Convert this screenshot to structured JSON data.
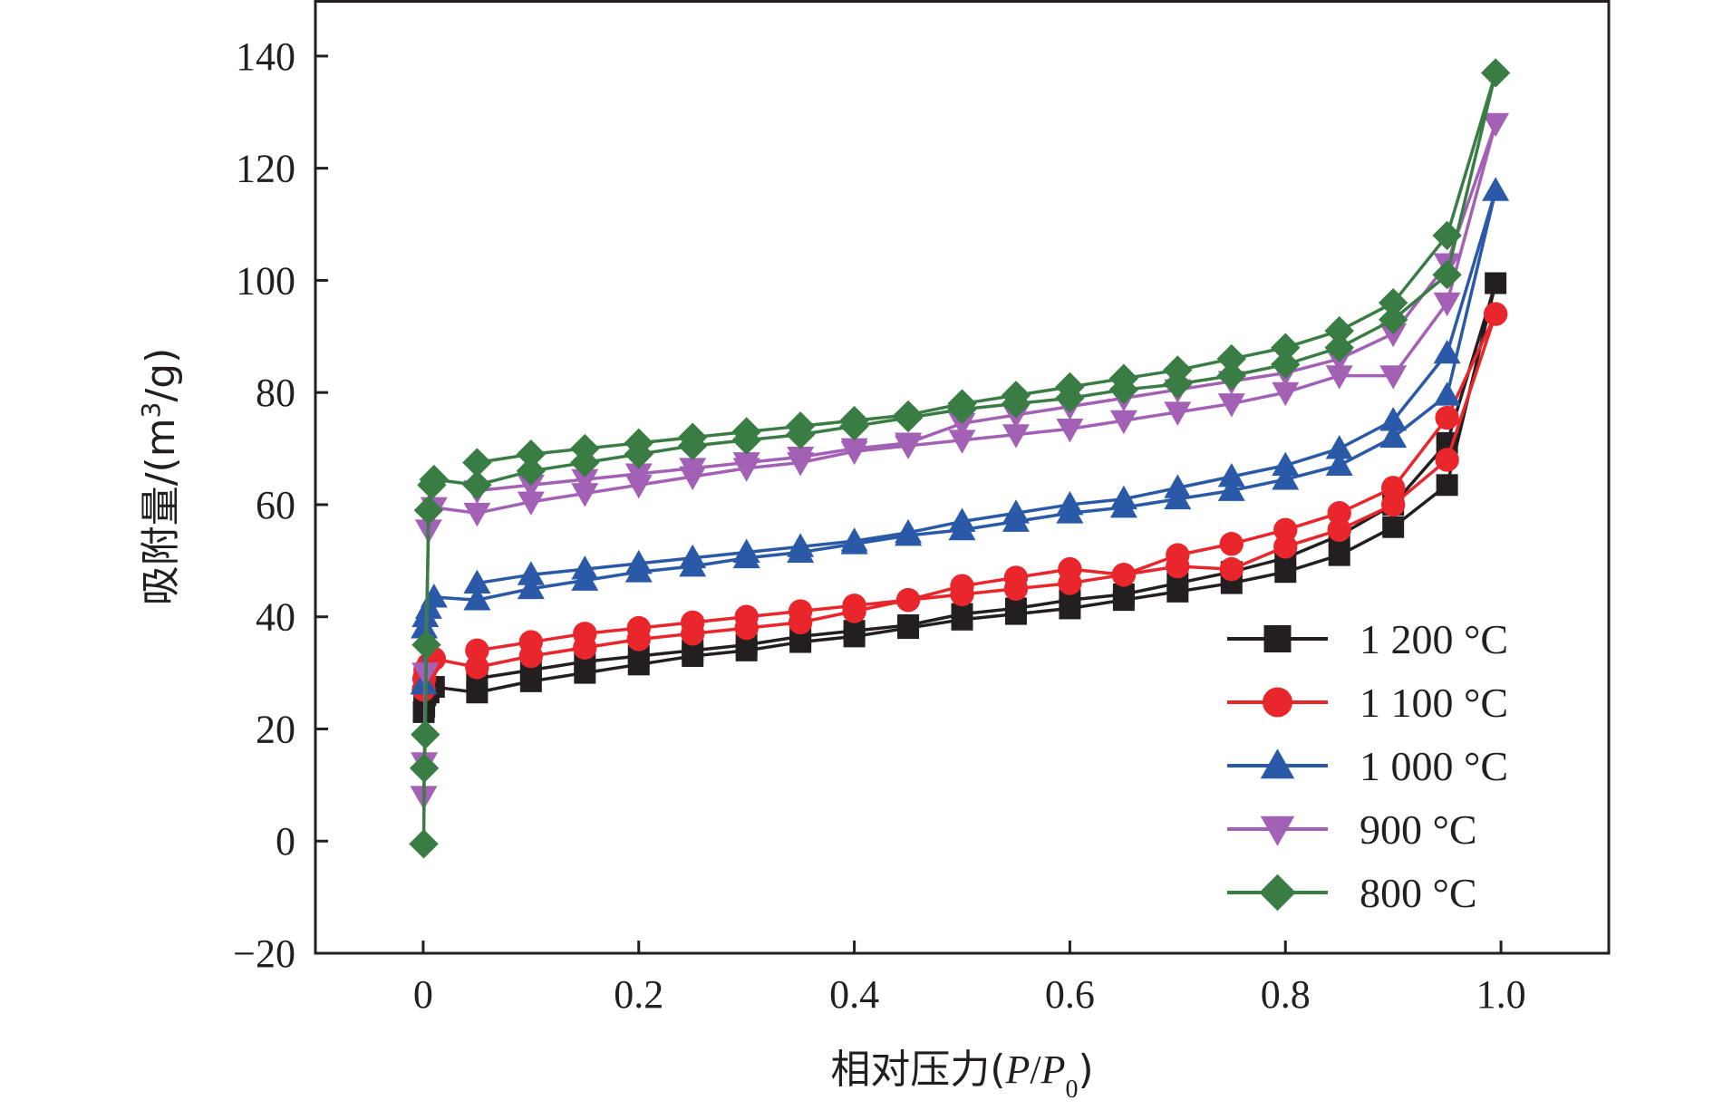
{
  "chart_data": {
    "type": "line",
    "xlabel_text": "相对压力(",
    "xlabel_p": "P",
    "xlabel_slash": "/",
    "xlabel_p0": "P",
    "xlabel_sub": "0",
    "xlabel_close": ")",
    "ylabel_text": "吸附量/(m",
    "ylabel_sup": "3",
    "ylabel_tail": "/g)",
    "xlim": [
      -0.1,
      1.1
    ],
    "ylim": [
      -20,
      150
    ],
    "xticks": [
      0,
      0.2,
      0.4,
      0.6,
      0.8,
      1.0
    ],
    "xtick_labels": [
      "0",
      "0.2",
      "0.4",
      "0.6",
      "0.8",
      "1.0"
    ],
    "yticks": [
      -20,
      0,
      20,
      40,
      60,
      80,
      100,
      120,
      140
    ],
    "ytick_labels": [
      "−20",
      "0",
      "20",
      "40",
      "60",
      "80",
      "100",
      "120",
      "140"
    ],
    "grid": false,
    "legend_position": "bottom-right",
    "series": [
      {
        "name": "1 200 °C",
        "color": "#231f20",
        "marker": "square",
        "x": [
          0.0005,
          0.001,
          0.002,
          0.005,
          0.01,
          0.05,
          0.1,
          0.15,
          0.2,
          0.25,
          0.3,
          0.35,
          0.4,
          0.45,
          0.5,
          0.55,
          0.6,
          0.65,
          0.7,
          0.75,
          0.8,
          0.85,
          0.9,
          0.95,
          0.995,
          0.95,
          0.9,
          0.85,
          0.8,
          0.75,
          0.7,
          0.65,
          0.6,
          0.55,
          0.5,
          0.45,
          0.4,
          0.35,
          0.3,
          0.25,
          0.2,
          0.15,
          0.1,
          0.05
        ],
        "y": [
          23,
          24,
          26,
          26.5,
          27.5,
          26.5,
          28.5,
          30,
          31.5,
          33,
          34,
          35.5,
          36.5,
          38,
          39.5,
          40.5,
          41.5,
          43,
          44.5,
          46,
          48,
          51,
          56,
          63.5,
          99.5,
          71,
          60,
          54.5,
          50.5,
          48,
          46,
          44,
          43,
          41.5,
          40.5,
          38.5,
          37.5,
          36.5,
          35,
          34,
          33,
          32,
          30.5,
          29
        ]
      },
      {
        "name": "1 100 °C",
        "color": "#e8262b",
        "marker": "circle",
        "x": [
          0.0005,
          0.001,
          0.002,
          0.005,
          0.01,
          0.05,
          0.1,
          0.15,
          0.2,
          0.25,
          0.3,
          0.35,
          0.4,
          0.45,
          0.5,
          0.55,
          0.6,
          0.65,
          0.7,
          0.75,
          0.8,
          0.85,
          0.9,
          0.95,
          0.995,
          0.95,
          0.9,
          0.85,
          0.8,
          0.75,
          0.7,
          0.65,
          0.6,
          0.55,
          0.5,
          0.45,
          0.4,
          0.35,
          0.3,
          0.25,
          0.2,
          0.15,
          0.1,
          0.05
        ],
        "y": [
          27,
          29,
          30.5,
          31.5,
          32.5,
          31,
          33,
          34.5,
          36,
          37,
          38,
          39,
          41,
          43,
          44,
          45,
          46,
          47.5,
          49,
          48.5,
          52.5,
          55.5,
          60,
          68,
          94,
          75.5,
          63,
          58.5,
          55.5,
          53,
          51,
          47.5,
          48.5,
          47,
          45.5,
          43,
          42,
          41,
          40,
          39,
          38,
          37,
          35.5,
          34
        ]
      },
      {
        "name": "1 000 °C",
        "color": "#2a59a8",
        "marker": "triangle-up",
        "x": [
          0.0005,
          0.001,
          0.002,
          0.005,
          0.01,
          0.05,
          0.1,
          0.15,
          0.2,
          0.25,
          0.3,
          0.35,
          0.4,
          0.45,
          0.5,
          0.55,
          0.6,
          0.65,
          0.7,
          0.75,
          0.8,
          0.85,
          0.9,
          0.95,
          0.995,
          0.95,
          0.9,
          0.85,
          0.8,
          0.75,
          0.7,
          0.65,
          0.6,
          0.55,
          0.5,
          0.45,
          0.4,
          0.35,
          0.3,
          0.25,
          0.2,
          0.15,
          0.1,
          0.05
        ],
        "y": [
          28,
          38,
          40,
          41.5,
          43.5,
          43,
          45,
          46.5,
          48,
          49,
          50.5,
          51.5,
          53,
          54.5,
          55.5,
          57,
          58.5,
          59.5,
          61,
          62.5,
          64.5,
          67,
          72,
          79.5,
          116,
          87,
          75,
          70,
          67,
          65,
          63,
          61,
          60,
          58.5,
          57,
          55,
          53.5,
          52.5,
          51.5,
          50.5,
          49.5,
          48.5,
          47.5,
          46
        ]
      },
      {
        "name": "900 °C",
        "color": "#a261b5",
        "marker": "triangle-down",
        "x": [
          0.0005,
          0.001,
          0.002,
          0.005,
          0.01,
          0.05,
          0.1,
          0.15,
          0.2,
          0.25,
          0.3,
          0.35,
          0.4,
          0.45,
          0.5,
          0.55,
          0.6,
          0.65,
          0.7,
          0.75,
          0.8,
          0.85,
          0.9,
          0.95,
          0.995,
          0.95,
          0.9,
          0.85,
          0.8,
          0.75,
          0.7,
          0.65,
          0.6,
          0.55,
          0.5,
          0.45,
          0.4,
          0.35,
          0.3,
          0.25,
          0.2,
          0.15,
          0.1,
          0.05
        ],
        "y": [
          8,
          14,
          30,
          55.5,
          59.5,
          58.5,
          60.5,
          62,
          63.5,
          65,
          66.5,
          67.5,
          69.5,
          70.5,
          71.5,
          72.5,
          73.5,
          75,
          76.5,
          78,
          80,
          83,
          83,
          96,
          128,
          103,
          90.5,
          86,
          83.5,
          82,
          80.5,
          79,
          77.5,
          76,
          74.5,
          71,
          70,
          68.5,
          67.5,
          66.5,
          65.5,
          64.5,
          63.5,
          62.5
        ]
      },
      {
        "name": "800 °C",
        "color": "#3a7d44",
        "marker": "diamond",
        "x": [
          0.0005,
          0.001,
          0.002,
          0.003,
          0.005,
          0.008,
          0.01,
          0.05,
          0.1,
          0.15,
          0.2,
          0.25,
          0.3,
          0.35,
          0.4,
          0.45,
          0.5,
          0.55,
          0.6,
          0.65,
          0.7,
          0.75,
          0.8,
          0.85,
          0.9,
          0.95,
          0.995,
          0.95,
          0.9,
          0.85,
          0.8,
          0.75,
          0.7,
          0.65,
          0.6,
          0.55,
          0.5,
          0.45,
          0.4,
          0.35,
          0.3,
          0.25,
          0.2,
          0.15,
          0.1,
          0.05
        ],
        "y": [
          -0.5,
          13,
          19,
          35,
          59,
          63.5,
          64.5,
          63.5,
          66,
          67.5,
          69,
          70.5,
          71.5,
          72.5,
          74,
          75.5,
          77,
          78,
          79,
          80.5,
          81.5,
          83,
          85,
          88,
          93,
          101,
          137,
          108,
          96,
          91,
          88,
          86,
          84,
          82.5,
          81,
          79.5,
          78,
          76,
          75,
          74,
          73,
          72,
          71,
          70,
          69,
          67.5
        ]
      }
    ]
  }
}
